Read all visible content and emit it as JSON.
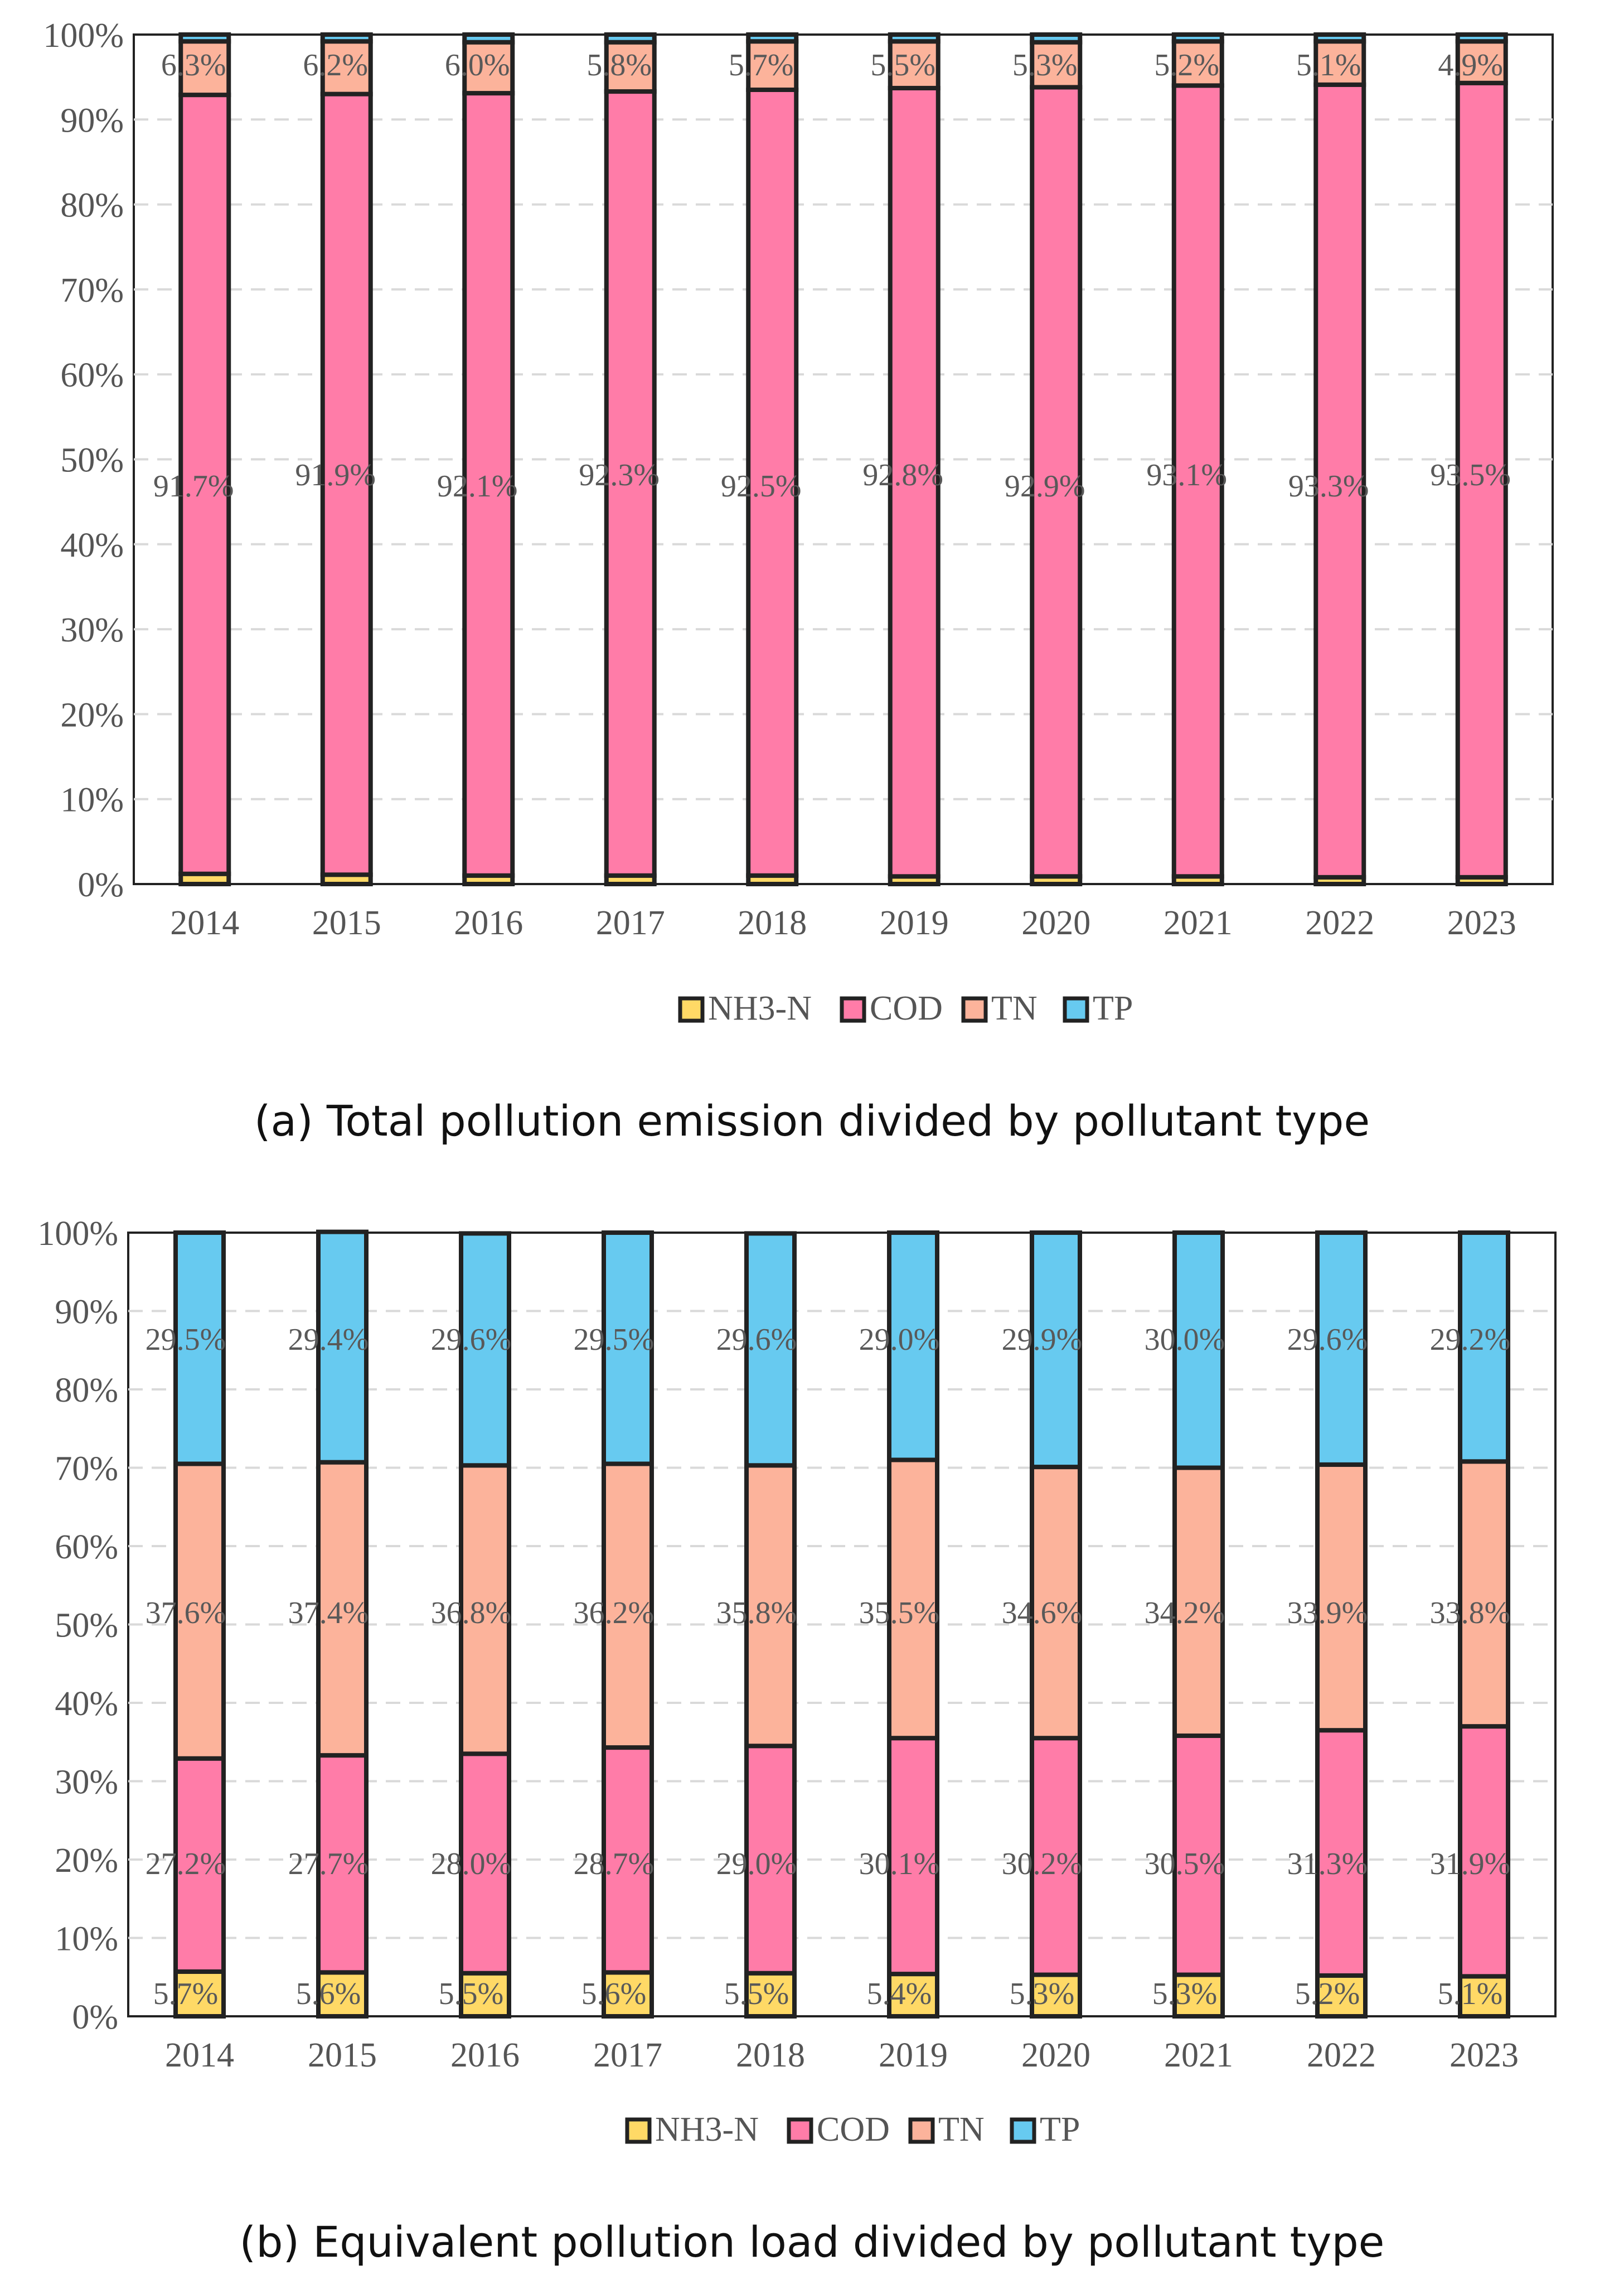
{
  "colors": {
    "NH3-N": "#FFD966",
    "COD": "#FF7CA8",
    "TN": "#FCB39B",
    "TP": "#67CAF0",
    "outline": "#222222",
    "grid": "#D9D9D9"
  },
  "chart_data": [
    {
      "type": "bar",
      "stacked": true,
      "caption": "(a) Total pollution emission divided by pollutant type",
      "categories": [
        "2014",
        "2015",
        "2016",
        "2017",
        "2018",
        "2019",
        "2020",
        "2021",
        "2022",
        "2023"
      ],
      "y_tick_labels": [
        "0%",
        "10%",
        "20%",
        "30%",
        "40%",
        "50%",
        "60%",
        "70%",
        "80%",
        "90%",
        "100%"
      ],
      "ylim": [
        0,
        100
      ],
      "legend": [
        "NH3-N",
        "COD",
        "TN",
        "TP"
      ],
      "series": [
        {
          "name": "NH3-N",
          "values": [
            1.2,
            1.1,
            1.0,
            1.0,
            1.0,
            0.9,
            0.9,
            0.9,
            0.8,
            0.8
          ]
        },
        {
          "name": "COD",
          "values": [
            91.7,
            91.9,
            92.1,
            92.3,
            92.5,
            92.8,
            92.9,
            93.1,
            93.3,
            93.5
          ]
        },
        {
          "name": "TN",
          "values": [
            6.3,
            6.2,
            6.0,
            5.8,
            5.7,
            5.5,
            5.3,
            5.2,
            5.1,
            4.9
          ]
        },
        {
          "name": "TP",
          "values": [
            0.8,
            0.8,
            0.9,
            0.9,
            0.8,
            0.8,
            0.9,
            0.8,
            0.8,
            0.8
          ]
        }
      ],
      "data_labels": {
        "COD": [
          "91.7%",
          "91.9%",
          "92.1%",
          "92.3%",
          "92.5%",
          "92.8%",
          "92.9%",
          "93.1%",
          "93.3%",
          "93.5%"
        ],
        "TN": [
          "6.3%",
          "6.2%",
          "6.0%",
          "5.8%",
          "5.7%",
          "5.5%",
          "5.3%",
          "5.2%",
          "5.1%",
          "4.9%"
        ]
      }
    },
    {
      "type": "bar",
      "stacked": true,
      "caption": "(b) Equivalent pollution load divided by pollutant type",
      "categories": [
        "2014",
        "2015",
        "2016",
        "2017",
        "2018",
        "2019",
        "2020",
        "2021",
        "2022",
        "2023"
      ],
      "y_tick_labels": [
        "0%",
        "10%",
        "20%",
        "30%",
        "40%",
        "50%",
        "60%",
        "70%",
        "80%",
        "90%",
        "100%"
      ],
      "ylim": [
        0,
        100
      ],
      "legend": [
        "NH3-N",
        "COD",
        "TN",
        "TP"
      ],
      "series": [
        {
          "name": "NH3-N",
          "values": [
            5.7,
            5.6,
            5.5,
            5.6,
            5.5,
            5.4,
            5.3,
            5.3,
            5.2,
            5.1
          ]
        },
        {
          "name": "COD",
          "values": [
            27.2,
            27.7,
            28.0,
            28.7,
            29.0,
            30.1,
            30.2,
            30.5,
            31.3,
            31.9
          ]
        },
        {
          "name": "TN",
          "values": [
            37.6,
            37.4,
            36.8,
            36.2,
            35.8,
            35.5,
            34.6,
            34.2,
            33.9,
            33.8
          ]
        },
        {
          "name": "TP",
          "values": [
            29.5,
            29.4,
            29.6,
            29.5,
            29.6,
            29.0,
            29.9,
            30.0,
            29.6,
            29.2
          ]
        }
      ],
      "data_labels": {
        "NH3-N": [
          "5.7%",
          "5.6%",
          "5.5%",
          "5.6%",
          "5.5%",
          "5.4%",
          "5.3%",
          "5.3%",
          "5.2%",
          "5.1%"
        ],
        "COD": [
          "27.2%",
          "27.7%",
          "28.0%",
          "28.7%",
          "29.0%",
          "30.1%",
          "30.2%",
          "30.5%",
          "31.3%",
          "31.9%"
        ],
        "TN": [
          "37.6%",
          "37.4%",
          "36.8%",
          "36.2%",
          "35.8%",
          "35.5%",
          "34.6%",
          "34.2%",
          "33.9%",
          "33.8%"
        ],
        "TP": [
          "29.5%",
          "29.4%",
          "29.6%",
          "29.5%",
          "29.6%",
          "29.0%",
          "29.9%",
          "30.0%",
          "29.6%",
          "29.2%"
        ]
      }
    }
  ]
}
